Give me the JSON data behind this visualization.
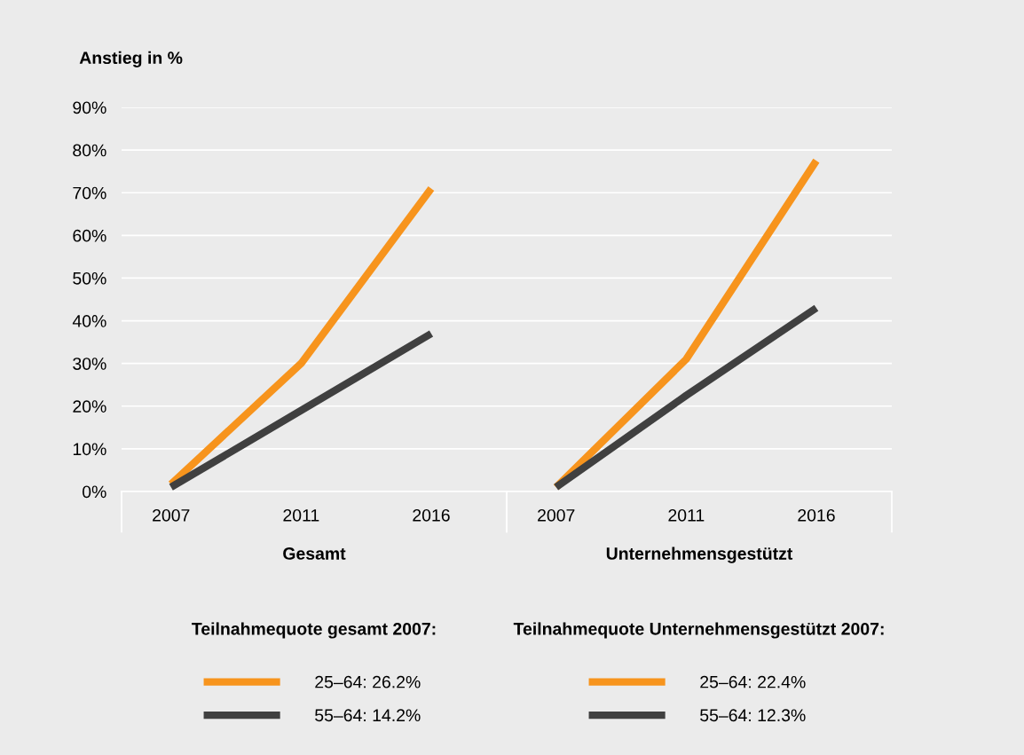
{
  "chart_data": [
    {
      "type": "line",
      "ylabel": "Anstieg in %",
      "xlabel": "Gesamt",
      "legend_title": "Teilnahmequote gesamt 2007:",
      "categories": [
        "2007",
        "2011",
        "2016"
      ],
      "series": [
        {
          "name": "25–64: 26.2%",
          "color": "#f7941d",
          "values": [
            1.7,
            30,
            71
          ]
        },
        {
          "name": "55–64: 14.2%",
          "color": "#404040",
          "values": [
            1,
            19,
            37
          ]
        }
      ],
      "ylim": [
        0,
        90
      ],
      "yticks": [
        {
          "value": 0,
          "label": "0%"
        },
        {
          "value": 10,
          "label": "10%"
        },
        {
          "value": 20,
          "label": "20%"
        },
        {
          "value": 30,
          "label": "30%"
        },
        {
          "value": 40,
          "label": "40%"
        },
        {
          "value": 50,
          "label": "50%"
        },
        {
          "value": 60,
          "label": "60%"
        },
        {
          "value": 70,
          "label": "70%"
        },
        {
          "value": 80,
          "label": "80%"
        },
        {
          "value": 90,
          "label": "90%"
        }
      ],
      "grid": "y",
      "legend": "bottom",
      "marker": "none",
      "line_style": "solid"
    },
    {
      "type": "line",
      "xlabel": "Unternehmensgestützt",
      "legend_title": "Teilnahmequote Unternehmensgestützt 2007:",
      "categories": [
        "2007",
        "2011",
        "2016"
      ],
      "series": [
        {
          "name": "25–64: 22.4%",
          "color": "#f7941d",
          "values": [
            1,
            31,
            77.5
          ]
        },
        {
          "name": "55–64: 12.3%",
          "color": "#404040",
          "values": [
            1,
            22.5,
            43
          ]
        }
      ],
      "ylim": [
        0,
        90
      ],
      "tick_labels": "x",
      "grid": "y",
      "legend": "bottom",
      "marker": "none",
      "line_style": "solid"
    }
  ]
}
